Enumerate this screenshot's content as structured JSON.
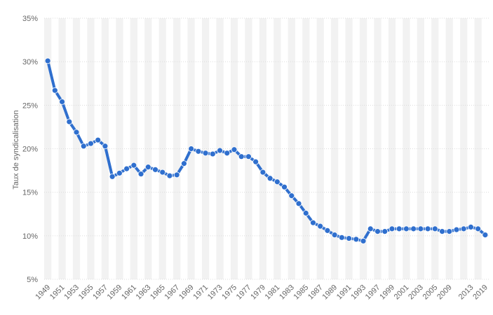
{
  "chart_data": {
    "type": "line",
    "title": "",
    "xlabel": "",
    "ylabel": "Taux de syndicalisation",
    "y_unit": "%",
    "ylim": [
      5,
      35
    ],
    "y_ticks": [
      5,
      10,
      15,
      20,
      25,
      30,
      35
    ],
    "y_tick_labels": [
      "5%",
      "10%",
      "15%",
      "20%",
      "25%",
      "30%",
      "35%"
    ],
    "x_tick_labels": [
      "1949",
      "1951",
      "1953",
      "1955",
      "1957",
      "1959",
      "1961",
      "1963",
      "1965",
      "1967",
      "1969",
      "1971",
      "1973",
      "1975",
      "1977",
      "1979",
      "1981",
      "1983",
      "1985",
      "1987",
      "1989",
      "1991",
      "1993",
      "1997",
      "1999",
      "2001",
      "2003",
      "2005",
      "2009",
      "2013",
      "2019"
    ],
    "grid": "alternating vertical bands, horizontal gridlines",
    "legend": "none",
    "series": [
      {
        "color": "#2f6fce",
        "points": [
          {
            "x": "1949",
            "y": 30.1
          },
          {
            "x": "1950",
            "y": 26.7
          },
          {
            "x": "1951",
            "y": 25.4
          },
          {
            "x": "1952",
            "y": 23.1
          },
          {
            "x": "1953",
            "y": 21.9
          },
          {
            "x": "1954",
            "y": 20.3
          },
          {
            "x": "1955",
            "y": 20.6
          },
          {
            "x": "1956",
            "y": 21.0
          },
          {
            "x": "1957",
            "y": 20.3
          },
          {
            "x": "1958",
            "y": 16.8
          },
          {
            "x": "1959",
            "y": 17.2
          },
          {
            "x": "1960",
            "y": 17.7
          },
          {
            "x": "1961",
            "y": 18.1
          },
          {
            "x": "1962",
            "y": 17.1
          },
          {
            "x": "1963",
            "y": 17.9
          },
          {
            "x": "1964",
            "y": 17.6
          },
          {
            "x": "1965",
            "y": 17.3
          },
          {
            "x": "1966",
            "y": 16.9
          },
          {
            "x": "1967",
            "y": 17.0
          },
          {
            "x": "1968",
            "y": 18.3
          },
          {
            "x": "1969",
            "y": 20.0
          },
          {
            "x": "1970",
            "y": 19.7
          },
          {
            "x": "1971",
            "y": 19.5
          },
          {
            "x": "1972",
            "y": 19.4
          },
          {
            "x": "1973",
            "y": 19.8
          },
          {
            "x": "1974",
            "y": 19.5
          },
          {
            "x": "1975",
            "y": 19.9
          },
          {
            "x": "1976",
            "y": 19.1
          },
          {
            "x": "1977",
            "y": 19.1
          },
          {
            "x": "1978",
            "y": 18.5
          },
          {
            "x": "1979",
            "y": 17.3
          },
          {
            "x": "1980",
            "y": 16.6
          },
          {
            "x": "1981",
            "y": 16.2
          },
          {
            "x": "1982",
            "y": 15.6
          },
          {
            "x": "1983",
            "y": 14.6
          },
          {
            "x": "1984",
            "y": 13.7
          },
          {
            "x": "1985",
            "y": 12.6
          },
          {
            "x": "1986",
            "y": 11.5
          },
          {
            "x": "1987",
            "y": 11.1
          },
          {
            "x": "1988",
            "y": 10.6
          },
          {
            "x": "1989",
            "y": 10.1
          },
          {
            "x": "1990",
            "y": 9.8
          },
          {
            "x": "1991",
            "y": 9.7
          },
          {
            "x": "1992",
            "y": 9.6
          },
          {
            "x": "1993",
            "y": 9.4
          },
          {
            "x": "1995",
            "y": 10.8
          },
          {
            "x": "1997",
            "y": 10.5
          },
          {
            "x": "1998",
            "y": 10.5
          },
          {
            "x": "1999",
            "y": 10.8
          },
          {
            "x": "2000",
            "y": 10.8
          },
          {
            "x": "2001",
            "y": 10.8
          },
          {
            "x": "2002",
            "y": 10.8
          },
          {
            "x": "2003",
            "y": 10.8
          },
          {
            "x": "2004",
            "y": 10.8
          },
          {
            "x": "2005",
            "y": 10.8
          },
          {
            "x": "2006",
            "y": 10.5
          },
          {
            "x": "2009",
            "y": 10.5
          },
          {
            "x": "2010",
            "y": 10.7
          },
          {
            "x": "2011",
            "y": 10.8
          },
          {
            "x": "2013",
            "y": 11.0
          },
          {
            "x": "2016",
            "y": 10.8
          },
          {
            "x": "2019",
            "y": 10.1
          }
        ]
      }
    ]
  }
}
